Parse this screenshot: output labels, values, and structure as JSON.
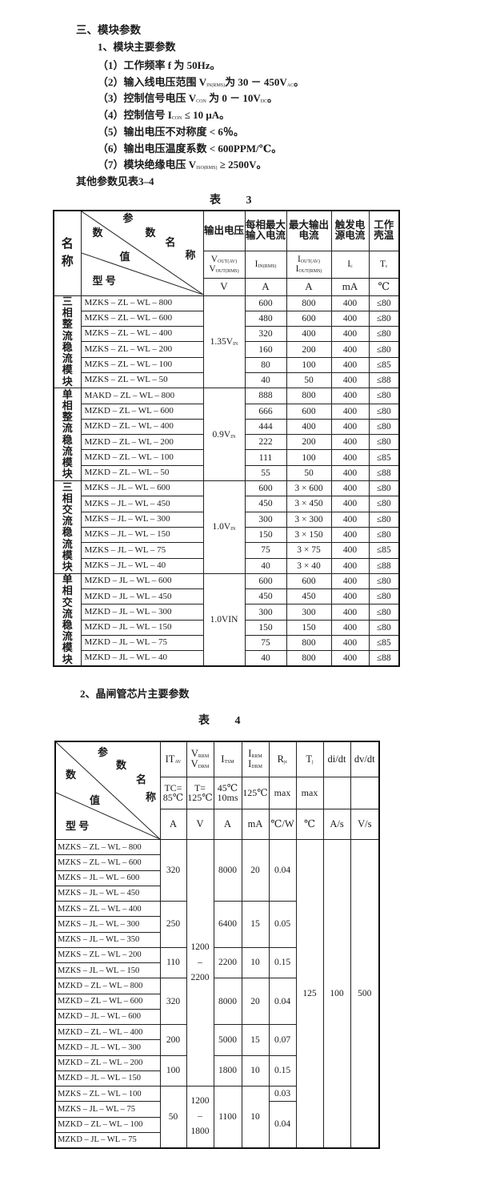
{
  "section_title": "三、模块参数",
  "subsection_1": "1、模块主要参数",
  "params": [
    {
      "text": "（1）工作频率 f 为 50Hz。",
      "pre": "",
      "sub": "",
      "post": ""
    },
    {
      "pre": "（2）输入线电压范围 V",
      "sub": "IN(RMS)",
      "post": "为 30 － 450V",
      "sub2": "AC",
      "post2": "。"
    },
    {
      "pre": "（3）控制信号电压 V",
      "sub": "CON",
      "post": " 为 0 － 10V",
      "sub2": "DC",
      "post2": "。"
    },
    {
      "pre": "（4）控制信号 I",
      "sub": "CON",
      "post": " ≤ 10 μA。",
      "sub2": "",
      "post2": ""
    },
    {
      "text": "（5）输出电压不对称度 < 6％。"
    },
    {
      "text": "（6）输出电压温度系数 < 600PPM/℃。"
    },
    {
      "pre": "（7）模块绝缘电压 V",
      "sub": "ISO(RMS)",
      "post": " ≥ 2500V。",
      "sub2": "",
      "post2": ""
    }
  ],
  "other_params_note": "其他参数见表3–4",
  "table3": {
    "caption": "表 3",
    "corner": {
      "name": "名称",
      "param": "参",
      "param2": "数",
      "name_a": "名",
      "name_b": "称",
      "value_a": "数",
      "value_b": "值",
      "model": "型 号"
    },
    "headers": [
      "输出电压",
      "每相最大输入电流",
      "最大输出电流",
      "触发电源电流",
      "工作壳温"
    ],
    "symbols": [
      [
        {
          "m": "V",
          "s": "OUT(AV)"
        },
        {
          "m": "V",
          "s": "OUT(RMS)"
        }
      ],
      [
        {
          "m": "I",
          "s": "IN(RMS)"
        }
      ],
      [
        {
          "m": "I",
          "s": "OUT(AV)"
        },
        {
          "m": "I",
          "s": "OUT(RMS)"
        }
      ],
      [
        {
          "m": "I",
          "s": "c"
        }
      ],
      [
        {
          "m": "T",
          "s": "c"
        }
      ]
    ],
    "units": [
      "V",
      "A",
      "A",
      "mA",
      "℃"
    ],
    "groups": [
      {
        "name": "三相整流稳流模块",
        "output_voltage": "1.35V",
        "ov_sub": "IN",
        "rows": [
          [
            "MZKS – ZL – WL – 800",
            "600",
            "800",
            "400",
            "≤80"
          ],
          [
            "MZKS – ZL – WL – 600",
            "480",
            "600",
            "400",
            "≤80"
          ],
          [
            "MZKS – ZL – WL – 400",
            "320",
            "400",
            "400",
            "≤80"
          ],
          [
            "MZKS – ZL – WL – 200",
            "160",
            "200",
            "400",
            "≤80"
          ],
          [
            "MZKS – ZL – WL – 100",
            "80",
            "100",
            "400",
            "≤85"
          ],
          [
            "MZKS – ZL – WL – 50",
            "40",
            "50",
            "400",
            "≤88"
          ]
        ]
      },
      {
        "name": "单相整流稳流模块",
        "output_voltage": "0.9V",
        "ov_sub": "IN",
        "rows": [
          [
            "MAKD – ZL – WL – 800",
            "888",
            "800",
            "400",
            "≤80"
          ],
          [
            "MZKD – ZL – WL – 600",
            "666",
            "600",
            "400",
            "≤80"
          ],
          [
            "MZKD – ZL – WL – 400",
            "444",
            "400",
            "400",
            "≤80"
          ],
          [
            "MZKD – ZL – WL – 200",
            "222",
            "200",
            "400",
            "≤80"
          ],
          [
            "MZKD – ZL – WL – 100",
            "111",
            "100",
            "400",
            "≤85"
          ],
          [
            "MZKD – ZL – WL – 50",
            "55",
            "50",
            "400",
            "≤88"
          ]
        ]
      },
      {
        "name": "三相交流稳流模块",
        "output_voltage": "1.0V",
        "ov_sub": "IN",
        "rows": [
          [
            "MZKS – JL – WL – 600",
            "600",
            "3 × 600",
            "400",
            "≤80"
          ],
          [
            "MZKS – JL – WL – 450",
            "450",
            "3 × 450",
            "400",
            "≤80"
          ],
          [
            "MZKS – JL – WL – 300",
            "300",
            "3 × 300",
            "400",
            "≤80"
          ],
          [
            "MZKS – JL – WL – 150",
            "150",
            "3 × 150",
            "400",
            "≤80"
          ],
          [
            "MZKS – JL – WL – 75",
            "75",
            "3 × 75",
            "400",
            "≤85"
          ],
          [
            "MZKS – JL – WL – 40",
            "40",
            "3 × 40",
            "400",
            "≤88"
          ]
        ]
      },
      {
        "name": "单相交流稳流模块",
        "output_voltage": "1.0VIN",
        "ov_sub": "",
        "rows": [
          [
            "MZKD – JL – WL – 600",
            "600",
            "600",
            "400",
            "≤80"
          ],
          [
            "MZKD – JL – WL – 450",
            "450",
            "450",
            "400",
            "≤80"
          ],
          [
            "MZKD – JL – WL – 300",
            "300",
            "300",
            "400",
            "≤80"
          ],
          [
            "MZKD – JL – WL – 150",
            "150",
            "150",
            "400",
            "≤80"
          ],
          [
            "MZKD – JL – WL – 75",
            "75",
            "800",
            "400",
            "≤85"
          ],
          [
            "MZKD – JL – WL – 40",
            "40",
            "800",
            "400",
            "≤88"
          ]
        ]
      }
    ]
  },
  "subsection_2": "2、晶闸管芯片主要参数",
  "table4": {
    "caption": "表 4",
    "corner": {
      "param": "参",
      "param2": "数",
      "name_a": "名",
      "name_b": "称",
      "value_a": "数",
      "value_b": "值",
      "model": "型 号"
    },
    "symbols": [
      [
        {
          "m": "IT",
          "s": "AV"
        }
      ],
      [
        {
          "m": "V",
          "s": "RRM"
        },
        {
          "m": "V",
          "s": "DRM"
        }
      ],
      [
        {
          "m": "I",
          "s": "TSM"
        }
      ],
      [
        {
          "m": "I",
          "s": "RRM"
        },
        {
          "m": "I",
          "s": "DRM"
        }
      ],
      [
        {
          "m": "R",
          "s": "jc"
        }
      ],
      [
        {
          "m": "T",
          "s": "j"
        }
      ],
      [
        {
          "m": "di/dt",
          "s": ""
        }
      ],
      [
        {
          "m": "dv/dt",
          "s": ""
        }
      ]
    ],
    "conditions": [
      [
        "TC=",
        "85℃"
      ],
      [
        "T=",
        "125℃"
      ],
      [
        "45℃",
        "10ms"
      ],
      [
        "125℃"
      ],
      [
        "max"
      ],
      [
        "max"
      ],
      [
        ""
      ],
      [
        ""
      ]
    ],
    "units": [
      "A",
      "V",
      "A",
      "mA",
      "℃/W",
      "℃",
      "A/s",
      "V/s"
    ],
    "models": [
      "MZKS – ZL – WL – 800",
      "MZKS – ZL – WL – 600",
      "MZKS – JL – WL – 600",
      "MZKS – JL – WL – 450",
      "MZKS – ZL – WL – 400",
      "MZKS – JL – WL – 300",
      "MZKS – JL – WL – 350",
      "MZKS – ZL – WL – 200",
      "MZKS – JL – WL – 150",
      "MZKD – ZL – WL – 800",
      "MZKD – ZL – WL – 600",
      "MZKD – JL – WL – 600",
      "MZKD – ZL – WL – 400",
      "MZKD – JL – WL – 300",
      "MZKD – ZL – WL – 200",
      "MZKD – JL – WL – 150",
      "MZKS – ZL – WL – 100",
      "MZKS – JL – WL – 75",
      "MZKD – ZL – WL – 100",
      "MZKD – JL – WL – 75"
    ],
    "columns": [
      [
        {
          "v": "320",
          "span": 4
        },
        {
          "v": "250",
          "span": 3
        },
        {
          "v": "110",
          "span": 2
        },
        {
          "v": "320",
          "span": 3
        },
        {
          "v": "200",
          "span": 2
        },
        {
          "v": "100",
          "span": 2
        },
        {
          "v": "50",
          "span": 4
        }
      ],
      [
        {
          "v": [
            "1200",
            "–",
            "2200"
          ],
          "span": 16
        },
        {
          "v": [
            "1200",
            "–",
            "1800"
          ],
          "span": 4
        }
      ],
      [
        {
          "v": "8000",
          "span": 4
        },
        {
          "v": "6400",
          "span": 3
        },
        {
          "v": "2200",
          "span": 2
        },
        {
          "v": "8000",
          "span": 3
        },
        {
          "v": "5000",
          "span": 2
        },
        {
          "v": "1800",
          "span": 2
        },
        {
          "v": "1100",
          "span": 4
        }
      ],
      [
        {
          "v": "20",
          "span": 4
        },
        {
          "v": "15",
          "span": 3
        },
        {
          "v": "10",
          "span": 2
        },
        {
          "v": "20",
          "span": 3
        },
        {
          "v": "15",
          "span": 2
        },
        {
          "v": "10",
          "span": 2
        },
        {
          "v": "10",
          "span": 4
        }
      ],
      [
        {
          "v": "0.04",
          "span": 4
        },
        {
          "v": "0.05",
          "span": 3
        },
        {
          "v": "0.15",
          "span": 2
        },
        {
          "v": "0.04",
          "span": 3
        },
        {
          "v": "0.07",
          "span": 2
        },
        {
          "v": "0.15",
          "span": 2
        },
        {
          "v": "0.03",
          "span": 1
        },
        {
          "v": "0.04",
          "span": 3
        }
      ],
      [
        {
          "v": "125",
          "span": 20
        }
      ],
      [
        {
          "v": "100",
          "span": 20
        }
      ],
      [
        {
          "v": "500",
          "span": 20
        }
      ]
    ]
  }
}
